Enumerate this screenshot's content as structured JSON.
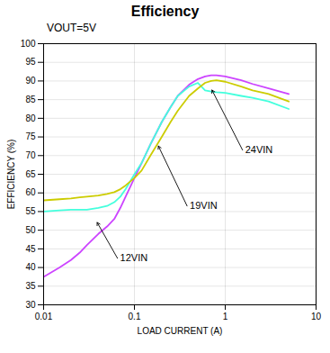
{
  "chart_data": {
    "type": "line",
    "title": "Efficiency",
    "subtitle": "VOUT=5V",
    "xlabel": "LOAD CURRENT (A)",
    "ylabel": "EFFICIENCY (%)",
    "log": "x",
    "grid": true,
    "xlim": [
      0.01,
      10
    ],
    "ylim": [
      30,
      100
    ],
    "xticks": [
      0.01,
      0.1,
      1,
      10
    ],
    "yticks": [
      30,
      35,
      40,
      45,
      50,
      55,
      60,
      65,
      70,
      75,
      80,
      85,
      90,
      95,
      100
    ],
    "x": [
      0.01,
      0.015,
      0.02,
      0.025,
      0.03,
      0.04,
      0.05,
      0.06,
      0.07,
      0.08,
      0.1,
      0.12,
      0.15,
      0.2,
      0.25,
      0.3,
      0.4,
      0.5,
      0.6,
      0.7,
      0.8,
      1.0,
      1.5,
      2.0,
      3.0,
      5.0
    ],
    "series": [
      {
        "color": "#cc44ff",
        "values": [
          37.5,
          40,
          42,
          44,
          46,
          49,
          51,
          53,
          56,
          59,
          64,
          68,
          73,
          79,
          83,
          86,
          89,
          90.5,
          91.2,
          91.5,
          91.5,
          91.2,
          90.2,
          89.2,
          88.0,
          86.5
        ]
      },
      {
        "color": "#44ffdd",
        "values": [
          55.0,
          55.3,
          55.5,
          55.5,
          55.5,
          56,
          56.5,
          57.5,
          59,
          61,
          65,
          68,
          73,
          79,
          83,
          86,
          88.5,
          89.5,
          87.5,
          87.2,
          87.0,
          86.8,
          86.0,
          85.5,
          84.5,
          82.5
        ]
      },
      {
        "color": "#cccc00",
        "values": [
          58.0,
          58.3,
          58.5,
          58.8,
          59.0,
          59.3,
          59.7,
          60.2,
          61,
          62,
          64,
          66,
          70,
          75,
          79,
          82,
          86,
          88,
          89.5,
          90.0,
          90.2,
          89.8,
          88.5,
          87.5,
          86.5,
          84.5
        ]
      }
    ],
    "annotations": [
      {
        "text": "24VIN",
        "x": 1.55,
        "y": 71.5,
        "xy": [
          0.7,
          88.0
        ]
      },
      {
        "text": "19VIN",
        "x": 0.38,
        "y": 56.5,
        "xy": [
          0.18,
          73.0
        ]
      },
      {
        "text": "12VIN",
        "x": 0.065,
        "y": 42.5,
        "xy": [
          0.038,
          52.5
        ]
      }
    ]
  }
}
